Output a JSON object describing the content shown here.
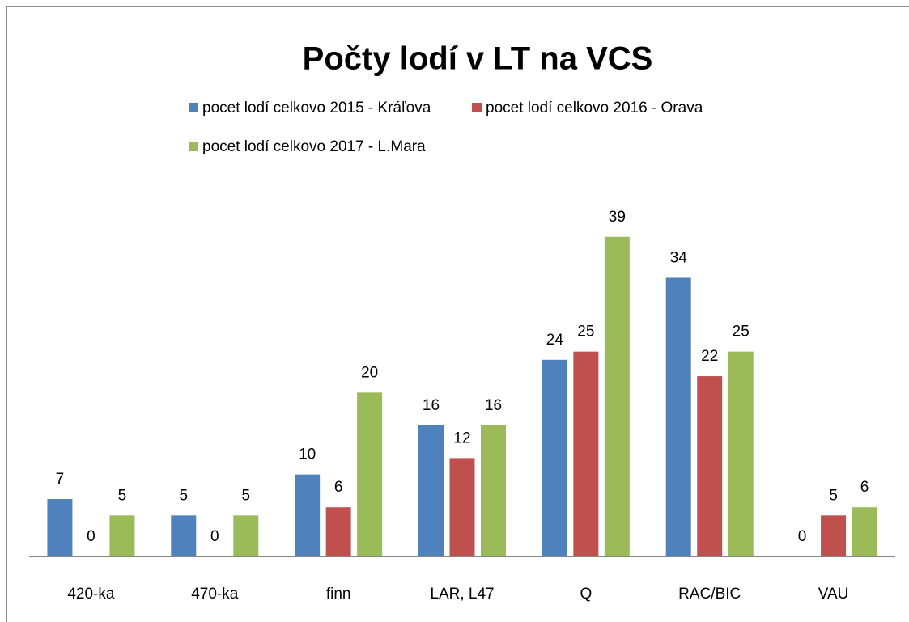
{
  "chart_data": {
    "type": "bar",
    "title": "Počty lodí v LT na VCS",
    "categories": [
      "420-ka",
      "470-ka",
      "finn",
      "LAR, L47",
      "Q",
      "RAC/BIC",
      "VAU"
    ],
    "series": [
      {
        "name": "pocet lodí celkovo 2015 - Kráľova",
        "color": "#4f81bd",
        "values": [
          7,
          5,
          10,
          16,
          24,
          34,
          0
        ]
      },
      {
        "name": "pocet lodí celkovo 2016 - Orava",
        "color": "#c0504d",
        "values": [
          0,
          0,
          6,
          12,
          25,
          22,
          5
        ]
      },
      {
        "name": "pocet lodí celkovo 2017 - L.Mara",
        "color": "#9bbb59",
        "values": [
          5,
          5,
          20,
          16,
          39,
          25,
          6
        ]
      }
    ],
    "ylim": [
      0,
      45
    ]
  }
}
